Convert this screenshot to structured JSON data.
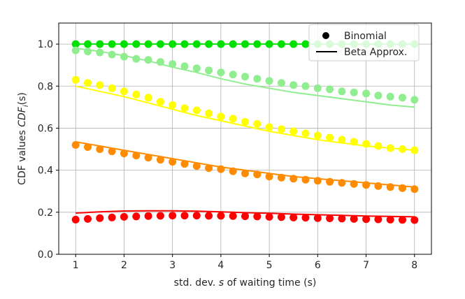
{
  "chart_data": {
    "type": "scatter",
    "xlabel": {
      "pre": "std. dev. ",
      "var": "s",
      "post": " of waiting time (s)"
    },
    "ylabel": {
      "pre": "CDF values ",
      "var": "CDF",
      "sub": "i",
      "post": "(s)"
    },
    "xlim": [
      0.65,
      8.35
    ],
    "ylim": [
      0.0,
      1.1
    ],
    "xticks": [
      1,
      2,
      3,
      4,
      5,
      6,
      7,
      8
    ],
    "yticks": [
      0.0,
      0.2,
      0.4,
      0.6,
      0.8,
      1.0
    ],
    "xtick_labels": [
      "1",
      "2",
      "3",
      "4",
      "5",
      "6",
      "7",
      "8"
    ],
    "ytick_labels": [
      "0.0",
      "0.2",
      "0.4",
      "0.6",
      "0.8",
      "1.0"
    ],
    "grid": true,
    "legend": {
      "position": "top-right",
      "entries": [
        {
          "label": "Binomial",
          "marker": "dot"
        },
        {
          "label": "Beta Approx.",
          "marker": "line"
        }
      ]
    },
    "x": [
      1.0,
      1.25,
      1.5,
      1.75,
      2.0,
      2.25,
      2.5,
      2.75,
      3.0,
      3.25,
      3.5,
      3.75,
      4.0,
      4.25,
      4.5,
      4.75,
      5.0,
      5.25,
      5.5,
      5.75,
      6.0,
      6.25,
      6.5,
      6.75,
      7.0,
      7.25,
      7.5,
      7.75,
      8.0
    ],
    "series": [
      {
        "color": "#00e000",
        "binomial": [
          1.0,
          1.0,
          1.0,
          1.0,
          1.0,
          1.0,
          1.0,
          1.0,
          1.0,
          1.0,
          1.0,
          1.0,
          1.0,
          1.0,
          1.0,
          1.0,
          1.0,
          1.0,
          1.0,
          1.0,
          1.0,
          1.0,
          1.0,
          1.0,
          1.0,
          1.0,
          1.0,
          1.0,
          1.0
        ],
        "beta_x": [
          1.0,
          8.0
        ],
        "beta": [
          1.0,
          1.0
        ]
      },
      {
        "color": "#90ee90",
        "binomial": [
          0.97,
          0.965,
          0.96,
          0.95,
          0.94,
          0.93,
          0.925,
          0.915,
          0.905,
          0.895,
          0.885,
          0.875,
          0.865,
          0.855,
          0.845,
          0.835,
          0.825,
          0.815,
          0.805,
          0.8,
          0.79,
          0.785,
          0.775,
          0.77,
          0.765,
          0.755,
          0.75,
          0.745,
          0.735
        ],
        "beta_x": [
          1.0,
          1.5,
          2.0,
          2.5,
          3.0,
          3.5,
          4.0,
          4.5,
          5.0,
          5.5,
          6.0,
          6.5,
          7.0,
          7.5,
          8.0
        ],
        "beta": [
          0.98,
          0.965,
          0.945,
          0.92,
          0.89,
          0.865,
          0.835,
          0.81,
          0.79,
          0.77,
          0.755,
          0.74,
          0.725,
          0.71,
          0.7
        ]
      },
      {
        "color": "#ffff00",
        "binomial": [
          0.83,
          0.815,
          0.805,
          0.79,
          0.775,
          0.76,
          0.745,
          0.725,
          0.71,
          0.695,
          0.685,
          0.67,
          0.655,
          0.645,
          0.63,
          0.62,
          0.605,
          0.595,
          0.585,
          0.575,
          0.565,
          0.555,
          0.545,
          0.535,
          0.525,
          0.515,
          0.505,
          0.5,
          0.495
        ],
        "beta_x": [
          1.0,
          1.5,
          2.0,
          2.5,
          3.0,
          3.5,
          4.0,
          4.5,
          5.0,
          5.5,
          6.0,
          6.5,
          7.0,
          7.5,
          8.0
        ],
        "beta": [
          0.8,
          0.775,
          0.75,
          0.72,
          0.69,
          0.66,
          0.635,
          0.61,
          0.585,
          0.565,
          0.545,
          0.53,
          0.515,
          0.505,
          0.495
        ]
      },
      {
        "color": "#ff8c00",
        "binomial": [
          0.52,
          0.51,
          0.5,
          0.49,
          0.48,
          0.47,
          0.46,
          0.45,
          0.44,
          0.43,
          0.42,
          0.41,
          0.405,
          0.395,
          0.385,
          0.38,
          0.37,
          0.365,
          0.36,
          0.355,
          0.35,
          0.345,
          0.34,
          0.335,
          0.33,
          0.325,
          0.32,
          0.315,
          0.31
        ],
        "beta_x": [
          1.0,
          1.5,
          2.0,
          2.5,
          3.0,
          3.5,
          4.0,
          4.5,
          5.0,
          5.5,
          6.0,
          6.5,
          7.0,
          7.5,
          8.0
        ],
        "beta": [
          0.535,
          0.515,
          0.495,
          0.475,
          0.455,
          0.435,
          0.415,
          0.4,
          0.385,
          0.37,
          0.36,
          0.35,
          0.34,
          0.33,
          0.32
        ]
      },
      {
        "color": "#ff0000",
        "binomial": [
          0.165,
          0.168,
          0.172,
          0.175,
          0.178,
          0.18,
          0.182,
          0.183,
          0.184,
          0.184,
          0.184,
          0.183,
          0.183,
          0.182,
          0.181,
          0.18,
          0.178,
          0.177,
          0.175,
          0.174,
          0.172,
          0.171,
          0.17,
          0.168,
          0.167,
          0.166,
          0.165,
          0.164,
          0.163
        ],
        "beta_x": [
          1.0,
          1.5,
          2.0,
          2.5,
          3.0,
          3.5,
          4.0,
          4.5,
          5.0,
          5.5,
          6.0,
          6.5,
          7.0,
          7.5,
          8.0
        ],
        "beta": [
          0.196,
          0.202,
          0.206,
          0.207,
          0.207,
          0.205,
          0.202,
          0.198,
          0.195,
          0.191,
          0.188,
          0.185,
          0.182,
          0.18,
          0.178
        ]
      }
    ]
  }
}
